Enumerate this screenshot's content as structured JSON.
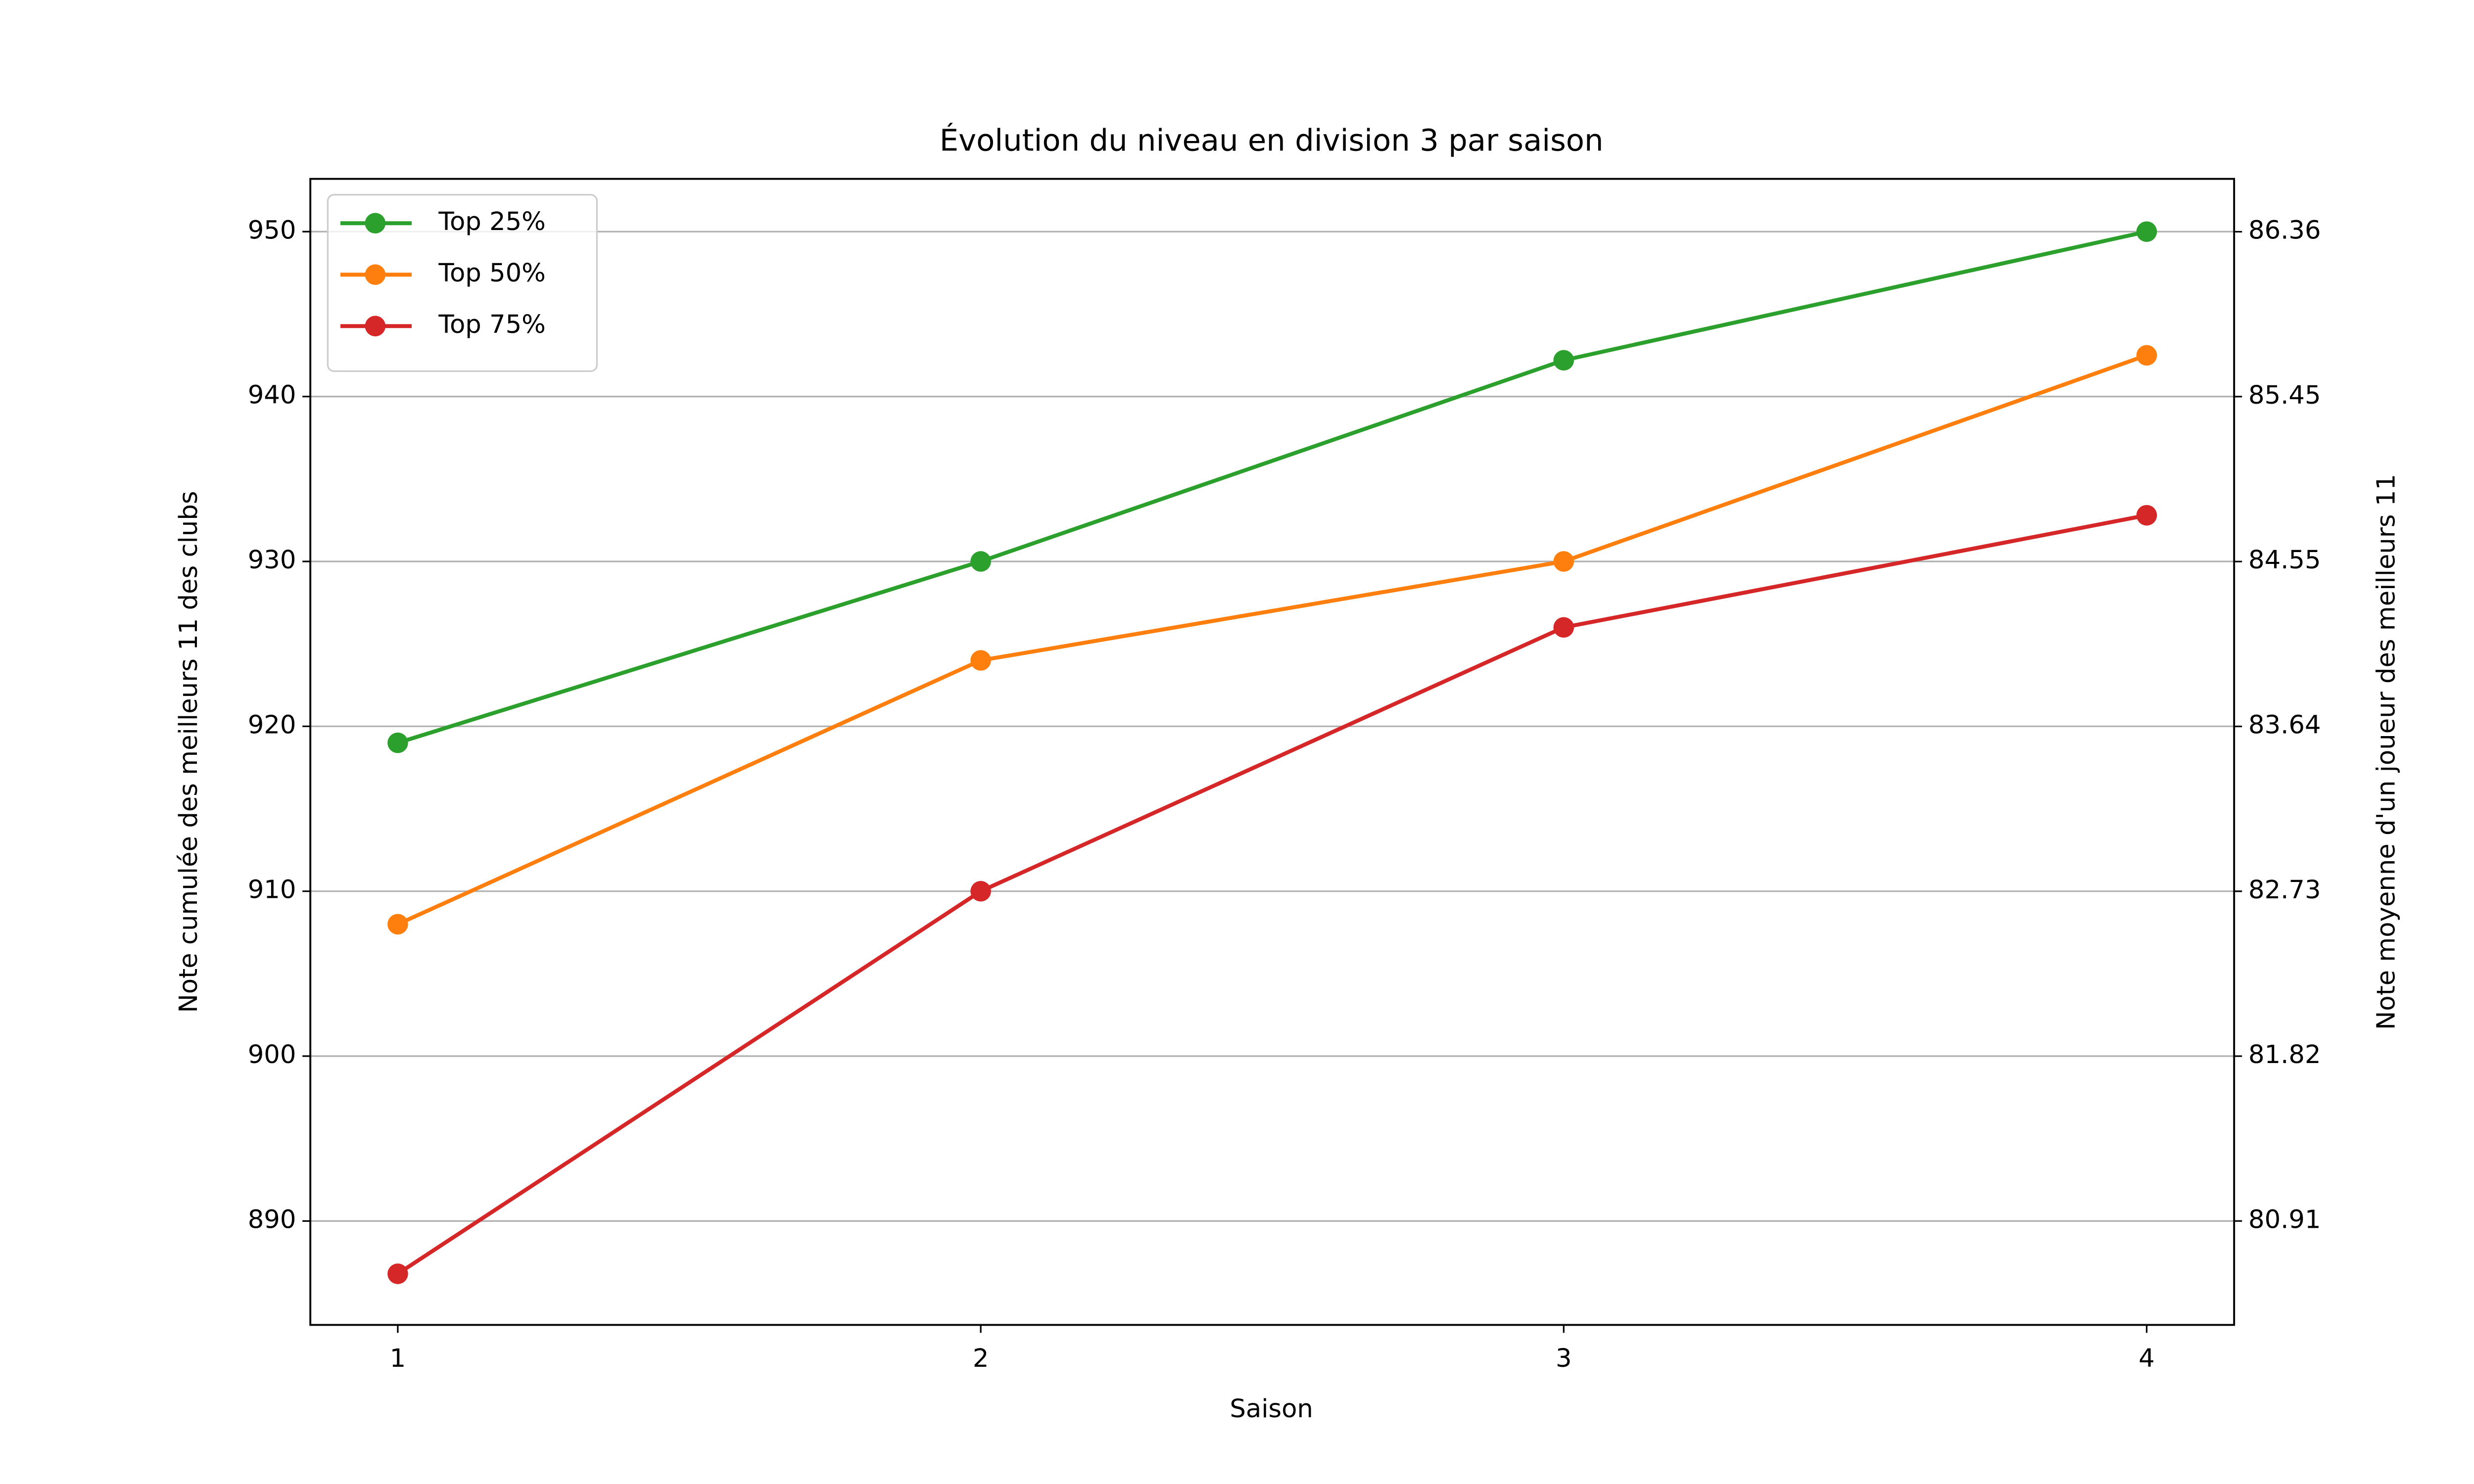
{
  "chart_data": {
    "type": "line",
    "title": "Évolution du niveau en division 3 par saison",
    "x_label": "Saison",
    "y_label": "Note cumulée des meilleurs 11 des clubs",
    "y2_label": "Note moyenne d'un joueur des meilleurs 11",
    "x": [
      1,
      2,
      3,
      4
    ],
    "xlim": [
      0.85,
      4.15
    ],
    "xticks": [
      1,
      2,
      3,
      4
    ],
    "ylim": [
      883.7,
      953.2
    ],
    "yticks": [
      890,
      900,
      910,
      920,
      930,
      940,
      950
    ],
    "y2lim": [
      80.336,
      86.655
    ],
    "y2ticks": [
      {
        "value": 80.909,
        "label": "80.91"
      },
      {
        "value": 81.818,
        "label": "81.82"
      },
      {
        "value": 82.727,
        "label": "82.73"
      },
      {
        "value": 83.636,
        "label": "83.64"
      },
      {
        "value": 84.545,
        "label": "84.55"
      },
      {
        "value": 85.4545,
        "label": "85.45"
      },
      {
        "value": 86.3636,
        "label": "86.36"
      }
    ],
    "grid": true,
    "legend": "upper left",
    "series": [
      {
        "name": "Top 25%",
        "color": "#2ca02c",
        "values": [
          919,
          930,
          942.2,
          950
        ]
      },
      {
        "name": "Top 50%",
        "color": "#ff7f0e",
        "values": [
          908,
          924,
          930,
          942.5
        ]
      },
      {
        "name": "Top 75%",
        "color": "#d62728",
        "values": [
          886.8,
          910,
          926,
          932.8
        ]
      }
    ]
  }
}
